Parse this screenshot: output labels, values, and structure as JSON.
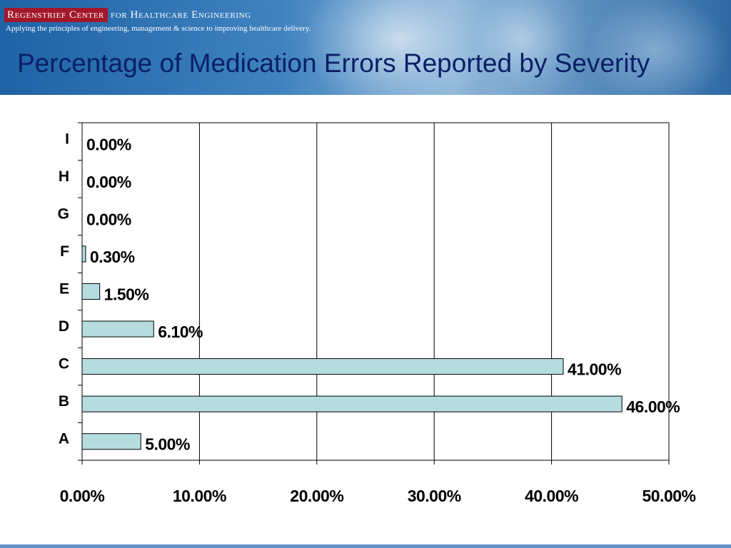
{
  "header": {
    "logo_highlight": "Regenstrief Center",
    "logo_rest": "for Healthcare Engineering",
    "tagline": "Applying the principles of engineering, management & science to improving healthcare delivery."
  },
  "slide": {
    "title": "Percentage of Medication Errors Reported by Severity"
  },
  "colors": {
    "bar_fill": "#b5dde0",
    "title_color": "#0a1f66",
    "logo_box": "#a3172a"
  },
  "chart_data": {
    "type": "bar",
    "orientation": "horizontal",
    "title": "",
    "xlabel": "",
    "ylabel": "",
    "categories": [
      "A",
      "B",
      "C",
      "D",
      "E",
      "F",
      "G",
      "H",
      "I"
    ],
    "values": [
      5.0,
      46.0,
      41.0,
      6.1,
      1.5,
      0.3,
      0.0,
      0.0,
      0.0
    ],
    "data_labels": [
      "5.00%",
      "46.00%",
      "41.00%",
      "6.10%",
      "1.50%",
      "0.30%",
      "0.00%",
      "0.00%",
      "0.00%"
    ],
    "xlim": [
      0,
      50
    ],
    "x_ticks": [
      0,
      10,
      20,
      30,
      40,
      50
    ],
    "x_tick_labels": [
      "0.00%",
      "10.00%",
      "20.00%",
      "30.00%",
      "40.00%",
      "50.00%"
    ],
    "grid": "vertical",
    "legend": "none"
  }
}
